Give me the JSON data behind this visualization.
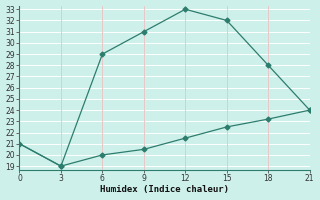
{
  "xlabel": "Humidex (Indice chaleur)",
  "x": [
    0,
    3,
    6,
    9,
    12,
    15,
    18,
    21
  ],
  "line1_y": [
    21,
    19,
    29,
    31,
    33,
    32,
    28,
    24
  ],
  "line2_y": [
    21,
    19,
    20,
    20.5,
    21.5,
    22.5,
    23.2,
    24
  ],
  "line_color": "#2d7d6e",
  "bg_color": "#cef0ea",
  "vgrid_color": "#e8c8c8",
  "hgrid_color": "#ffffff",
  "ylim_min": 19,
  "ylim_max": 33,
  "xlim_min": 0,
  "xlim_max": 21,
  "yticks": [
    19,
    20,
    21,
    22,
    23,
    24,
    25,
    26,
    27,
    28,
    29,
    30,
    31,
    32,
    33
  ],
  "xticks": [
    0,
    3,
    6,
    9,
    12,
    15,
    18,
    21
  ],
  "marker": "D",
  "marker_size": 2.5,
  "line_width": 0.9,
  "tick_fontsize": 5.5,
  "xlabel_fontsize": 6.5,
  "spine_color": "#2d7d6e"
}
